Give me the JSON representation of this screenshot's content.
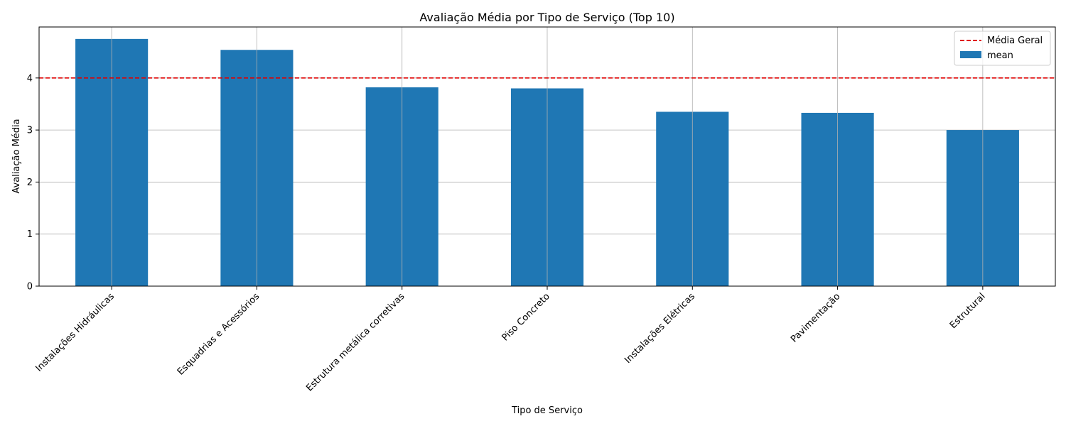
{
  "chart_data": {
    "type": "bar",
    "title": "Avaliação Média por Tipo de Serviço (Top 10)",
    "xlabel": "Tipo de Serviço",
    "ylabel": "Avaliação Média",
    "categories": [
      "Instalações Hidráulicas",
      "Esquadrias e Acessórios",
      "Estrutura metálica corretivas",
      "Piso Concreto",
      "Instalações Elétricas",
      "Pavimentação",
      "Estrutural"
    ],
    "series": [
      {
        "name": "mean",
        "values": [
          4.75,
          4.54,
          3.82,
          3.8,
          3.35,
          3.33,
          3.0
        ],
        "color": "#1f77b4"
      }
    ],
    "reference_line": {
      "name": "Média Geral",
      "value": 4.0,
      "color": "#e00000",
      "style": "dashed"
    },
    "ylim": [
      0,
      4.98
    ],
    "yticks": [
      0,
      1,
      2,
      3,
      4
    ],
    "grid": true,
    "legend_position": "top-right"
  }
}
